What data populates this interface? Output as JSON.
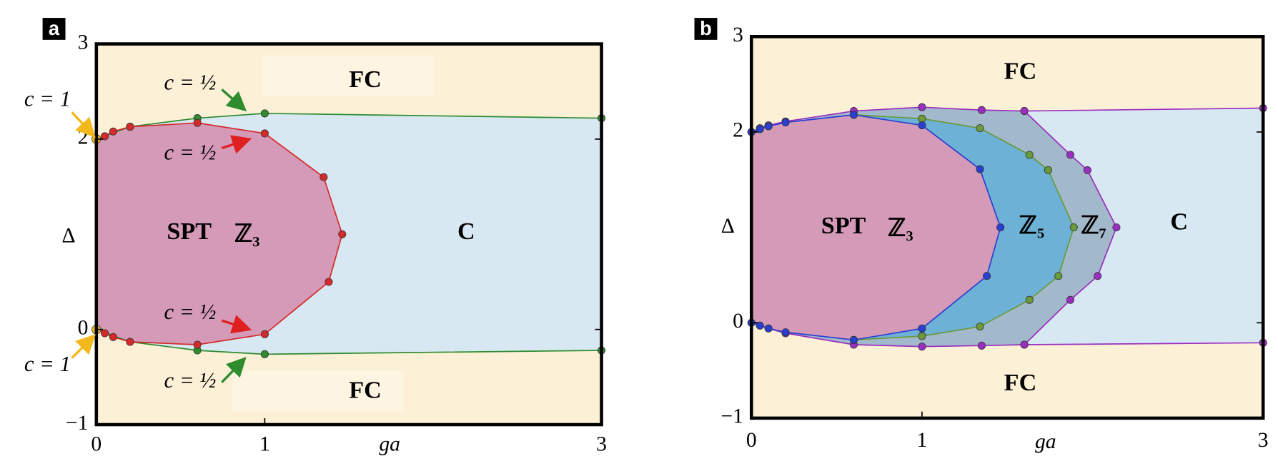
{
  "chart_data": [
    {
      "type": "line",
      "panel_label": "a",
      "xlabel": "ga",
      "ylabel": "Δ",
      "xlim": [
        0,
        3
      ],
      "ylim": [
        -1,
        3
      ],
      "xticks": [
        0,
        1,
        3
      ],
      "yticks": [
        {
          "value": -1,
          "label": "−1"
        },
        0,
        2,
        3
      ],
      "background": "#fcf1d6",
      "region_labels": [
        "FC",
        "FC",
        "SPT",
        "ℤ₃",
        "C"
      ],
      "annotations": [
        "c = 1",
        "c = 1",
        "c = ½",
        "c = ½",
        "c = ½",
        "c = ½"
      ],
      "series": [
        {
          "color": "#2e8b2e",
          "fill": "#d8e8f2",
          "x": [
            0,
            0.2,
            0.6,
            1,
            3
          ],
          "y": [
            2.0,
            2.13,
            2.22,
            2.27,
            2.22
          ]
        },
        {
          "color": "#2e8b2e",
          "x": [
            0,
            0.2,
            0.6,
            1,
            3
          ],
          "y": [
            0,
            -0.13,
            -0.22,
            -0.26,
            -0.22
          ]
        },
        {
          "color": "#d62a2a",
          "fill": "#d49ab8",
          "x": [
            0,
            0.05,
            0.1,
            0.2,
            0.6,
            1,
            1.35,
            1.46,
            1.38,
            1,
            0.6,
            0.2,
            0.1,
            0.05,
            0
          ],
          "y": [
            2.0,
            2.03,
            2.08,
            2.13,
            2.17,
            2.06,
            1.6,
            1.0,
            0.5,
            -0.05,
            -0.16,
            -0.13,
            -0.08,
            -0.04,
            0
          ]
        },
        {
          "color": "#f2b81c",
          "x": [
            0,
            0
          ],
          "y": [
            2.0,
            0
          ]
        }
      ]
    },
    {
      "type": "line",
      "panel_label": "b",
      "xlabel": "ga",
      "ylabel": "Δ",
      "xlim": [
        0,
        3
      ],
      "ylim": [
        -1,
        3
      ],
      "xticks": [
        0,
        1,
        3
      ],
      "yticks": [
        {
          "value": -1,
          "label": "−1"
        },
        0,
        2,
        3
      ],
      "background": "#fcf1d6",
      "region_labels": [
        "FC",
        "FC",
        "SPT",
        "ℤ₃",
        "ℤ₅",
        "ℤ₇",
        "C"
      ],
      "series": [
        {
          "color": "#9a2fc0",
          "fill": "#d8e8f2",
          "x": [
            0,
            0.05,
            0.1,
            0.2,
            0.6,
            1,
            1.35,
            1.6,
            3
          ],
          "y": [
            2.0,
            2.04,
            2.07,
            2.11,
            2.22,
            2.26,
            2.23,
            2.22,
            2.25
          ]
        },
        {
          "color": "#9a2fc0",
          "x": [
            0,
            0.05,
            0.1,
            0.2,
            0.6,
            1,
            1.35,
            1.6,
            3
          ],
          "y": [
            0,
            -0.03,
            -0.06,
            -0.11,
            -0.23,
            -0.25,
            -0.24,
            -0.23,
            -0.21
          ]
        },
        {
          "color": "#9a2fc0",
          "fill": "#a2b9cc",
          "x": [
            1.6,
            1.87,
            1.97,
            2.14,
            2.03,
            1.87,
            1.6
          ],
          "y": [
            2.22,
            1.76,
            1.6,
            1.0,
            0.49,
            0.24,
            -0.23
          ]
        },
        {
          "color": "#6a9a3a",
          "fill": "#6eb1d6",
          "x": [
            0.6,
            1,
            1.34,
            1.63,
            1.74,
            1.89,
            1.8,
            1.63,
            1.34,
            1,
            0.6
          ],
          "y": [
            2.18,
            2.14,
            2.04,
            1.76,
            1.6,
            1.0,
            0.49,
            0.24,
            -0.04,
            -0.14,
            -0.18
          ]
        },
        {
          "color": "#2a3fd0",
          "fill": "#d49ab8",
          "x": [
            0,
            0.05,
            0.1,
            0.2,
            0.6,
            1,
            1.34,
            1.46,
            1.38,
            1,
            0.6,
            0.2,
            0.1,
            0.05,
            0
          ],
          "y": [
            2.0,
            2.03,
            2.06,
            2.1,
            2.18,
            2.07,
            1.61,
            1.0,
            0.49,
            -0.06,
            -0.18,
            -0.1,
            -0.06,
            -0.03,
            0
          ]
        }
      ]
    }
  ]
}
